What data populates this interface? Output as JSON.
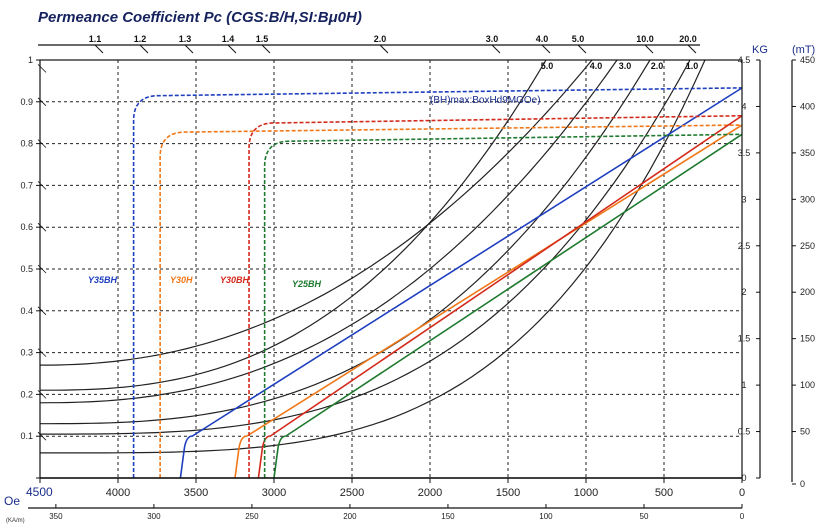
{
  "chart_data": {
    "type": "line",
    "title": "Permeance  Coefficient  Pc  (CGS:B/H,SI:Bμ0H)",
    "annotation": "(BH)max:BoxHd9MGOe)",
    "x_unit_oe": "Oe",
    "x_unit_ka": "(KA/m)",
    "y_unit_kg": "KG",
    "y_unit_mt": "(mT)",
    "xlim_oe": [
      4500,
      0
    ],
    "x_ticks_oe": [
      4500,
      4000,
      3500,
      3000,
      2500,
      2000,
      1500,
      1000,
      500,
      0
    ],
    "x_ticks_ka": [
      350,
      300,
      250,
      200,
      150,
      100,
      50,
      0
    ],
    "y_ticks_frac": [
      1.0,
      0.9,
      0.8,
      0.7,
      0.6,
      0.5,
      0.4,
      0.3,
      0.2,
      0.1,
      0
    ],
    "y_ticks_kg": [
      4.5,
      4.0,
      3.5,
      3.0,
      2.5,
      2.0,
      1.5,
      1.0,
      0.5,
      0
    ],
    "y_ticks_mt": [
      450,
      400,
      350,
      300,
      250,
      200,
      150,
      100,
      50,
      0
    ],
    "ylim_kg": [
      0,
      4.5
    ],
    "pc_top_labels": [
      "1.1",
      "1.2",
      "1.3",
      "1.4",
      "1.5",
      "2.0",
      "3.0",
      "4.0",
      "5.0",
      "10.0",
      "20.0"
    ],
    "pc_inner_labels": [
      "5.0",
      "4.0",
      "3.0",
      "2.0",
      "1.0"
    ],
    "grades": [
      {
        "name": "Y35BH",
        "color": "#1f3fbf",
        "br_kg": 4.2,
        "hcb_oe": 3600,
        "hcj_oe": 3900
      },
      {
        "name": "Y30H",
        "color": "#f07818",
        "br_kg": 3.8,
        "hcb_oe": 3250,
        "hcj_oe": 3730
      },
      {
        "name": "Y30BH",
        "color": "#d42a1c",
        "br_kg": 3.9,
        "hcb_oe": 3100,
        "hcj_oe": 3160
      },
      {
        "name": "Y25BH",
        "color": "#1e7a2e",
        "br_kg": 3.7,
        "hcb_oe": 3000,
        "hcj_oe": 3060
      }
    ],
    "series": [
      {
        "name": "Y35BH",
        "x": [
          3600,
          0
        ],
        "y": [
          0,
          4.2
        ]
      },
      {
        "name": "Y30H",
        "x": [
          3250,
          0
        ],
        "y": [
          0,
          3.8
        ]
      },
      {
        "name": "Y30BH",
        "x": [
          3100,
          0
        ],
        "y": [
          0,
          3.9
        ]
      },
      {
        "name": "Y25BH",
        "x": [
          3000,
          0
        ],
        "y": [
          0,
          3.7
        ]
      }
    ],
    "grid": true
  }
}
